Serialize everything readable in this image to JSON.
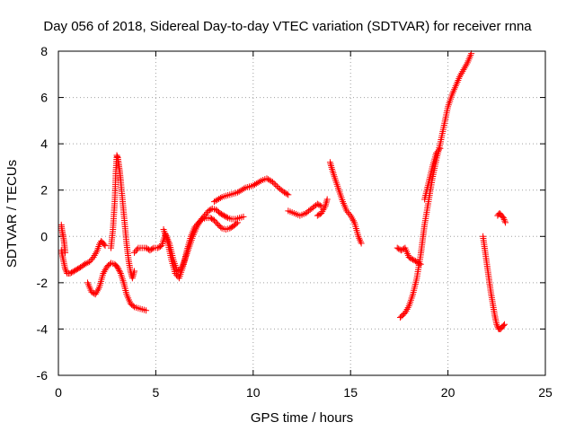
{
  "chart_data": {
    "type": "scatter",
    "title": "Day 056 of 2018, Sidereal Day-to-day VTEC variation (SDTVAR) for receiver rnna",
    "xlabel": "GPS time / hours",
    "ylabel": "SDTVAR / TECUs",
    "xlim": [
      0,
      25
    ],
    "ylim": [
      -6,
      8
    ],
    "xticks": [
      0,
      5,
      10,
      15,
      20,
      25
    ],
    "yticks": [
      -6,
      -4,
      -2,
      0,
      2,
      4,
      6,
      8
    ],
    "grid": true,
    "marker": "+",
    "series_color": "#ff0000",
    "segments": [
      {
        "x": [
          0.15,
          0.25,
          0.35,
          0.45,
          0.6,
          0.8,
          1.0,
          1.2,
          1.35
        ],
        "y": [
          -0.6,
          -1.0,
          -1.4,
          -1.6,
          -1.6,
          -1.5,
          -1.4,
          -1.3,
          -1.2
        ]
      },
      {
        "x": [
          0.15,
          0.2,
          0.25,
          0.3,
          0.35
        ],
        "y": [
          0.5,
          0.2,
          0.0,
          -0.3,
          -0.7
        ]
      },
      {
        "x": [
          1.35,
          1.6,
          1.8,
          2.0,
          2.1,
          2.2,
          2.3,
          2.4
        ],
        "y": [
          -1.2,
          -1.1,
          -0.9,
          -0.6,
          -0.35,
          -0.2,
          -0.3,
          -0.4
        ]
      },
      {
        "x": [
          1.5,
          1.7,
          1.9,
          2.1,
          2.3,
          2.5,
          2.7,
          2.9,
          3.05,
          3.2,
          3.35,
          3.5,
          3.7,
          3.9,
          4.1,
          4.3,
          4.5
        ],
        "y": [
          -2.0,
          -2.4,
          -2.5,
          -2.2,
          -1.6,
          -1.3,
          -1.15,
          -1.2,
          -1.35,
          -1.6,
          -2.0,
          -2.5,
          -2.9,
          -3.05,
          -3.1,
          -3.15,
          -3.2
        ]
      },
      {
        "x": [
          2.7,
          2.8,
          2.9,
          2.95,
          3.0,
          3.05,
          3.1,
          3.15,
          3.2,
          3.3,
          3.4,
          3.5,
          3.6,
          3.7,
          3.8,
          3.9
        ],
        "y": [
          -0.5,
          0.3,
          1.6,
          2.8,
          3.5,
          3.4,
          3.1,
          2.8,
          2.4,
          1.5,
          0.6,
          -0.3,
          -1.0,
          -1.5,
          -1.8,
          -1.5
        ]
      },
      {
        "x": [
          3.9,
          4.1,
          4.3,
          4.5,
          4.7,
          4.9,
          5.1,
          5.3,
          5.5,
          5.7,
          5.9,
          6.1,
          6.3,
          6.5,
          6.7,
          6.9,
          7.1,
          7.3,
          7.5,
          7.7,
          7.9,
          8.1,
          8.3,
          8.5,
          8.7,
          8.9,
          9.1,
          9.3,
          9.5
        ],
        "y": [
          -0.7,
          -0.5,
          -0.5,
          -0.5,
          -0.6,
          -0.5,
          -0.5,
          -0.4,
          0.1,
          -0.3,
          -1.0,
          -1.5,
          -1.4,
          -1.0,
          -0.5,
          0.0,
          0.4,
          0.7,
          0.9,
          1.1,
          1.2,
          1.15,
          1.0,
          0.9,
          0.8,
          0.75,
          0.75,
          0.8,
          0.85
        ]
      },
      {
        "x": [
          5.4,
          5.6,
          5.8,
          6.0,
          6.2,
          6.4,
          6.6,
          6.8,
          7.0,
          7.2,
          7.4,
          7.6,
          7.8,
          8.0,
          8.2,
          8.4,
          8.6,
          8.8,
          9.0,
          9.2
        ],
        "y": [
          0.3,
          -0.2,
          -1.0,
          -1.6,
          -1.8,
          -1.3,
          -0.6,
          0.0,
          0.4,
          0.6,
          0.75,
          0.8,
          0.8,
          0.7,
          0.5,
          0.35,
          0.3,
          0.35,
          0.45,
          0.6
        ]
      },
      {
        "x": [
          8.0,
          8.4,
          8.8,
          9.2,
          9.6,
          10.0,
          10.4,
          10.7,
          11.0,
          11.3,
          11.6,
          11.8
        ],
        "y": [
          1.5,
          1.7,
          1.8,
          1.9,
          2.1,
          2.2,
          2.4,
          2.5,
          2.35,
          2.1,
          1.9,
          1.8
        ]
      },
      {
        "x": [
          11.8,
          12.1,
          12.4,
          12.7,
          13.0,
          13.3,
          13.5
        ],
        "y": [
          1.1,
          1.0,
          0.9,
          1.0,
          1.2,
          1.4,
          1.3
        ]
      },
      {
        "x": [
          13.3,
          13.5,
          13.7,
          13.8
        ],
        "y": [
          0.9,
          1.0,
          1.3,
          1.6
        ]
      },
      {
        "x": [
          13.95,
          14.05,
          14.2,
          14.4,
          14.6,
          14.8,
          15.0,
          15.2,
          15.4,
          15.55
        ],
        "y": [
          3.2,
          2.9,
          2.5,
          2.0,
          1.5,
          1.1,
          0.9,
          0.6,
          0.0,
          -0.3
        ]
      },
      {
        "x": [
          17.4,
          17.6,
          17.8,
          18.0,
          18.2,
          18.4,
          18.6
        ],
        "y": [
          -0.5,
          -0.6,
          -0.5,
          -0.9,
          -1.0,
          -1.1,
          -1.2
        ]
      },
      {
        "x": [
          17.55,
          17.8,
          18.0,
          18.2,
          18.4,
          18.6,
          18.8,
          19.0,
          19.2,
          19.4,
          19.6,
          19.8,
          20.0,
          20.2,
          20.4,
          20.6,
          20.8,
          21.0,
          21.2
        ],
        "y": [
          -3.5,
          -3.3,
          -3.0,
          -2.5,
          -1.8,
          -0.8,
          0.5,
          1.5,
          2.5,
          3.3,
          4.0,
          4.8,
          5.6,
          6.1,
          6.5,
          6.9,
          7.2,
          7.5,
          7.9
        ]
      },
      {
        "x": [
          18.8,
          19.0,
          19.2,
          19.4,
          19.6
        ],
        "y": [
          1.6,
          2.3,
          3.0,
          3.6,
          3.8
        ]
      },
      {
        "x": [
          21.8,
          21.9,
          22.0,
          22.1,
          22.2,
          22.3,
          22.4,
          22.5,
          22.6,
          22.7,
          22.8,
          22.9
        ],
        "y": [
          0.0,
          -0.6,
          -1.2,
          -1.8,
          -2.4,
          -2.9,
          -3.4,
          -3.8,
          -4.0,
          -4.0,
          -3.9,
          -3.8
        ]
      },
      {
        "x": [
          22.55,
          22.65,
          22.75,
          22.85,
          22.95
        ],
        "y": [
          0.9,
          1.0,
          0.9,
          0.8,
          0.6
        ]
      }
    ]
  }
}
